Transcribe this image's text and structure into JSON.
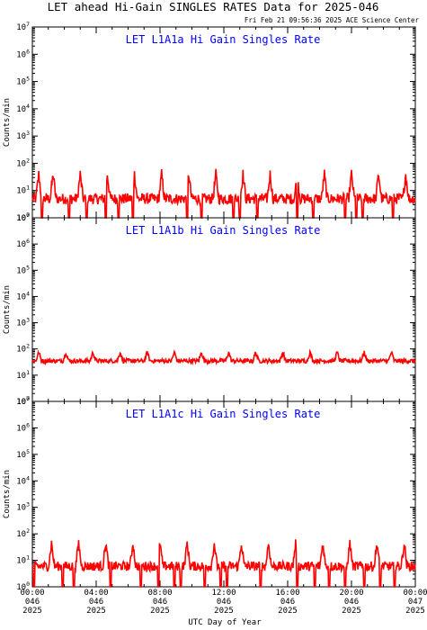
{
  "figure": {
    "title": "LET ahead Hi-Gain SINGLES RATES Data for 2025-046",
    "subtitle": "Fri Feb 21 09:56:36 2025 ACE Science Center",
    "xlabel": "UTC Day of Year",
    "title_color": "#000000",
    "panel_title_color": "#0000ff",
    "trace_color": "#ff0000"
  },
  "chart_data": [
    {
      "type": "line",
      "title": "LET L1A1a Hi Gain Singles Rate",
      "ylabel": "Counts/min",
      "yscale": "log",
      "ylim": [
        1,
        10000000
      ],
      "yticks": [
        {
          "base": "10",
          "exp": "0"
        },
        {
          "base": "10",
          "exp": "1"
        },
        {
          "base": "10",
          "exp": "2"
        },
        {
          "base": "10",
          "exp": "3"
        },
        {
          "base": "10",
          "exp": "4"
        },
        {
          "base": "10",
          "exp": "5"
        },
        {
          "base": "10",
          "exp": "6"
        },
        {
          "base": "10",
          "exp": "7"
        }
      ],
      "xlim_hours": [
        0,
        24
      ],
      "series": [
        {
          "color": "#ff0000",
          "baseline": 5,
          "noise_decades": 0.2,
          "spike_hours": [
            0.4,
            1.3,
            3.0,
            4.7,
            6.4,
            8.1,
            9.8,
            11.5,
            13.2,
            14.9,
            16.6,
            18.3,
            20.0,
            21.7,
            23.4
          ],
          "spike_peak": 40,
          "dropouts_hours": [
            0.6,
            2.3,
            3.4,
            4.6,
            5.4,
            6.3,
            9.7,
            10.6,
            12.6,
            13.0,
            14.1,
            16.6,
            17.6,
            19.6,
            20.3,
            20.7,
            22.6
          ]
        }
      ]
    },
    {
      "type": "line",
      "title": "LET L1A1b Hi Gain Singles Rate",
      "ylabel": "Counts/min",
      "yscale": "log",
      "ylim": [
        1,
        10000000
      ],
      "yticks": [
        {
          "base": "10",
          "exp": "0"
        },
        {
          "base": "10",
          "exp": "1"
        },
        {
          "base": "10",
          "exp": "2"
        },
        {
          "base": "10",
          "exp": "3"
        },
        {
          "base": "10",
          "exp": "4"
        },
        {
          "base": "10",
          "exp": "5"
        },
        {
          "base": "10",
          "exp": "6"
        },
        {
          "base": "10",
          "exp": "7"
        }
      ],
      "xlim_hours": [
        0,
        24
      ],
      "series": [
        {
          "color": "#ff0000",
          "baseline": 35,
          "noise_decades": 0.08,
          "spike_hours": [
            0.4,
            2.1,
            3.8,
            5.5,
            7.2,
            8.9,
            10.6,
            12.3,
            14.0,
            15.7,
            17.4,
            19.1,
            20.8,
            22.5
          ],
          "spike_peak": 75,
          "dropouts_hours": []
        }
      ]
    },
    {
      "type": "line",
      "title": "LET L1A1c Hi Gain Singles Rate",
      "ylabel": "Counts/min",
      "yscale": "log",
      "ylim": [
        1,
        10000000
      ],
      "yticks": [
        {
          "base": "10",
          "exp": "0"
        },
        {
          "base": "10",
          "exp": "1"
        },
        {
          "base": "10",
          "exp": "2"
        },
        {
          "base": "10",
          "exp": "3"
        },
        {
          "base": "10",
          "exp": "4"
        },
        {
          "base": "10",
          "exp": "5"
        },
        {
          "base": "10",
          "exp": "6"
        },
        {
          "base": "10",
          "exp": "7"
        }
      ],
      "xlim_hours": [
        0,
        24
      ],
      "series": [
        {
          "color": "#ff0000",
          "baseline": 6,
          "noise_decades": 0.18,
          "spike_hours": [
            1.2,
            2.9,
            4.6,
            6.3,
            8.0,
            9.7,
            11.4,
            13.1,
            14.8,
            16.5,
            18.2,
            19.9,
            21.6,
            23.3
          ],
          "spike_peak": 45,
          "dropouts_hours": [
            0.1,
            1.9,
            2.6,
            4.9,
            6.8,
            7.9,
            8.9,
            9.3,
            10.8,
            11.8,
            12.2,
            14.3,
            16.6,
            17.7,
            18.6,
            19.6,
            20.8,
            21.8,
            22.7
          ]
        }
      ]
    }
  ],
  "xticks": [
    {
      "hour": 0,
      "time": "00:00",
      "doy": "046",
      "year": "2025"
    },
    {
      "hour": 4,
      "time": "04:00",
      "doy": "046",
      "year": "2025"
    },
    {
      "hour": 8,
      "time": "08:00",
      "doy": "046",
      "year": "2025"
    },
    {
      "hour": 12,
      "time": "12:00",
      "doy": "046",
      "year": "2025"
    },
    {
      "hour": 16,
      "time": "16:00",
      "doy": "046",
      "year": "2025"
    },
    {
      "hour": 20,
      "time": "20:00",
      "doy": "046",
      "year": "2025"
    },
    {
      "hour": 24,
      "time": "00:00",
      "doy": "047",
      "year": "2025"
    }
  ]
}
